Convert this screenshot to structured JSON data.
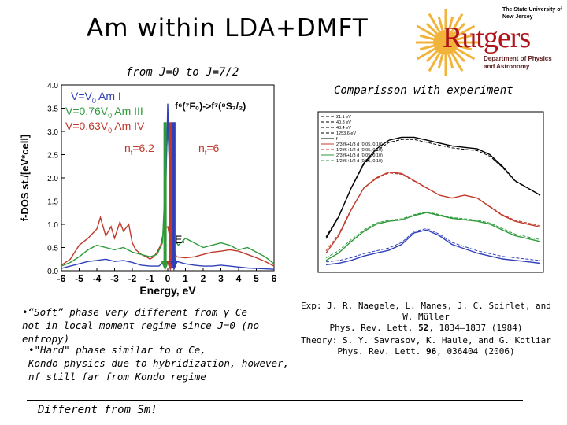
{
  "slide": {
    "title": "Am within LDA+DMFT",
    "subtitle": "from J=0  to  J=7/2",
    "exp_heading": "Comparisson with experiment"
  },
  "logo": {
    "small_top": "The State University of New Jersey",
    "wordmark": "Rutgers",
    "dept": "Department of Physics and Astronomy",
    "colors": {
      "brand": "#b0141a",
      "sun": "#f2b33a"
    }
  },
  "bullets": {
    "b1_line1": "•“Soft” phase very different from γ Ce",
    "b1_line2": "not in local moment regime since J=0 (no entropy)",
    "b2_line1": "•\"Hard\" phase similar to α Ce,",
    "b2_line2": "Kondo physics due to hybridization, however,",
    "b2_line3": "nf still far from Kondo regime"
  },
  "references": {
    "exp_line1": "Exp: J. R. Naegele, L. Manes, J. C. Spirlet, and W. Müller",
    "exp_line2_pre": "Phys. Rev. Lett. ",
    "exp_vol": "52",
    "exp_line2_post": ", 1834–1837 (1984)",
    "th_line1": "Theory: S. Y. Savrasov, K. Haule, and G. Kotliar",
    "th_line2_pre": "Phys. Rev. Lett. ",
    "th_vol": "96",
    "th_line2_post": ", 036404 (2006)"
  },
  "footer": {
    "text": "Different from Sm!"
  },
  "chart_data": [
    {
      "type": "line",
      "xlabel": "Energy, eV",
      "ylabel": "f-DOS st./[eV*cell]",
      "xlim": [
        -6,
        6
      ],
      "ylim": [
        0,
        4.0
      ],
      "x_ticks": [
        "-6",
        "-5",
        "-4",
        "-3",
        "-2",
        "-1",
        "0",
        "1",
        "2",
        "3",
        "4",
        "5",
        "6"
      ],
      "y_ticks": [
        "0.0",
        "0.5",
        "1.0",
        "1.5",
        "2.0",
        "2.5",
        "3.0",
        "3.5",
        "4.0"
      ],
      "legend_placement": "top-left",
      "series_labels": {
        "s1_pre": "V=V",
        "s1_sub": "0",
        "s1_post": " Am I",
        "s2_pre": "V=0.76V",
        "s2_sub": "0",
        "s2_post": " Am III",
        "s3_pre": "V=0.63V",
        "s3_sub": "0",
        "s3_post": " Am IV"
      },
      "annotations": {
        "nf_left_pre": "n",
        "nf_left_sub": "f",
        "nf_left_post": "=6.2",
        "nf_right_pre": "n",
        "nf_right_sub": "f",
        "nf_right_post": "=6",
        "transition": "f⁶(⁷F₀)->f⁷(⁸S₇/₂)",
        "ef_pre": "E",
        "ef_sub": "f"
      },
      "series": [
        {
          "color": "#c0392b",
          "x": [
            -6,
            -5.5,
            -5,
            -4.5,
            -4,
            -3.8,
            -3.5,
            -3.2,
            -3,
            -2.7,
            -2.5,
            -2.2,
            -2,
            -1.8,
            -1.5,
            -1.2,
            -1,
            -0.8,
            -0.6,
            -0.4,
            -0.2,
            0,
            0.2,
            0.5,
            1,
            1.5,
            2,
            2.5,
            3,
            3.5,
            4,
            4.5,
            5,
            5.5,
            6
          ],
          "y": [
            0.12,
            0.25,
            0.55,
            0.7,
            0.9,
            1.15,
            0.75,
            0.95,
            0.7,
            1.05,
            0.85,
            1.0,
            0.6,
            0.45,
            0.35,
            0.3,
            0.25,
            0.3,
            0.4,
            0.55,
            0.9,
            0.95,
            0.55,
            0.3,
            0.28,
            0.3,
            0.35,
            0.4,
            0.42,
            0.45,
            0.42,
            0.35,
            0.28,
            0.2,
            0.1
          ]
        },
        {
          "color": "#2e9a3a",
          "x": [
            -6,
            -5.5,
            -5,
            -4.5,
            -4,
            -3.5,
            -3,
            -2.5,
            -2,
            -1.5,
            -1,
            -0.6,
            -0.3,
            0,
            0.3,
            0.6,
            1,
            1.5,
            2,
            2.5,
            3,
            3.5,
            4,
            4.5,
            5,
            5.5,
            6
          ],
          "y": [
            0.1,
            0.18,
            0.3,
            0.45,
            0.55,
            0.5,
            0.45,
            0.5,
            0.4,
            0.35,
            0.3,
            0.35,
            0.6,
            3.1,
            0.7,
            0.55,
            0.7,
            0.6,
            0.5,
            0.55,
            0.6,
            0.55,
            0.45,
            0.5,
            0.4,
            0.3,
            0.15
          ]
        },
        {
          "color": "#2f3fb8",
          "x": [
            -6,
            -5.5,
            -5,
            -4.5,
            -4,
            -3.5,
            -3,
            -2.5,
            -2,
            -1.5,
            -1,
            -0.5,
            -0.2,
            0,
            0.2,
            0.5,
            1,
            1.5,
            2,
            2.5,
            3,
            3.5,
            4,
            4.5,
            5,
            5.5,
            6
          ],
          "y": [
            0.05,
            0.1,
            0.15,
            0.2,
            0.22,
            0.25,
            0.2,
            0.22,
            0.18,
            0.12,
            0.1,
            0.1,
            0.2,
            3.6,
            0.4,
            0.2,
            0.15,
            0.12,
            0.1,
            0.1,
            0.12,
            0.1,
            0.08,
            0.06,
            0.05,
            0.04,
            0.03
          ]
        }
      ],
      "markers": [
        {
          "x": -0.15,
          "y_from": 3.2,
          "y_to": 0.0,
          "color": "#2e9a3a"
        },
        {
          "x": 0.15,
          "y_from": 3.2,
          "y_to": 0.0,
          "color": "#c0392b"
        },
        {
          "x": 0.35,
          "y_from": 3.2,
          "y_to": 0.0,
          "color": "#2f3fb8"
        }
      ]
    },
    {
      "type": "line",
      "xlabel": "",
      "ylabel": "",
      "legend_placement": "top-left",
      "legend": [
        "21.1 eV",
        "40.8 eV",
        "48.4 eV",
        "1253.6 eV",
        "f",
        "2/3 f6+1/3 d (0.05, 0.10)",
        "1/2 f6+1/2 d (0.05, 0.10)",
        "2/3 f6+1/3 d (0.05, 0.10)",
        "1/2 f6+1/2 d (0.05, 0.10)"
      ],
      "series": [
        {
          "color": "#000000",
          "y": [
            0.2,
            0.35,
            0.55,
            0.72,
            0.82,
            0.88,
            0.9,
            0.9,
            0.88,
            0.86,
            0.84,
            0.83,
            0.82,
            0.78,
            0.7,
            0.6,
            0.55,
            0.5
          ]
        },
        {
          "color": "#c0392b",
          "y": [
            0.1,
            0.22,
            0.4,
            0.55,
            0.62,
            0.66,
            0.65,
            0.6,
            0.55,
            0.5,
            0.48,
            0.5,
            0.48,
            0.42,
            0.36,
            0.32,
            0.3,
            0.28
          ]
        },
        {
          "color": "#2e9a3a",
          "y": [
            0.05,
            0.1,
            0.18,
            0.25,
            0.3,
            0.32,
            0.33,
            0.36,
            0.38,
            0.36,
            0.34,
            0.33,
            0.32,
            0.3,
            0.26,
            0.22,
            0.2,
            0.18
          ]
        },
        {
          "color": "#2f3fb8",
          "y": [
            0.02,
            0.03,
            0.05,
            0.08,
            0.1,
            0.12,
            0.16,
            0.24,
            0.26,
            0.22,
            0.16,
            0.13,
            0.1,
            0.08,
            0.06,
            0.05,
            0.04,
            0.03
          ]
        }
      ]
    }
  ]
}
